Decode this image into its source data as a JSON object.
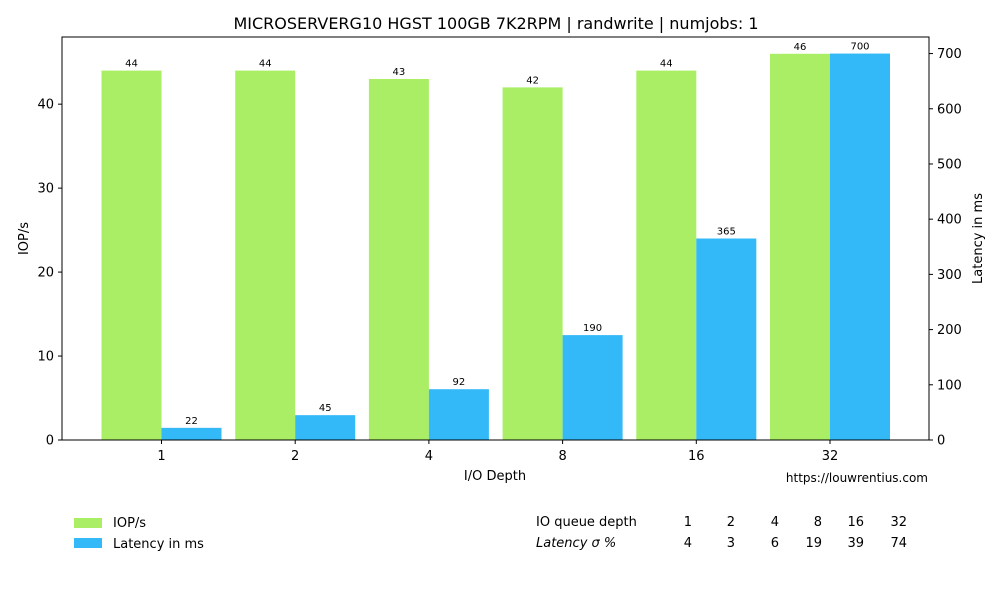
{
  "chart_data": {
    "type": "bar",
    "title": "MICROSERVERG10 HGST 100GB 7K2RPM | randwrite | numjobs: 1",
    "xlabel": "I/O Depth",
    "ylabel": "IOP/s",
    "y2label": "Latency in ms",
    "categories": [
      "1",
      "2",
      "4",
      "8",
      "16",
      "32"
    ],
    "ylim": [
      0,
      48
    ],
    "y2lim": [
      0,
      730
    ],
    "yticks": [
      0,
      10,
      20,
      30,
      40
    ],
    "y2ticks": [
      0,
      100,
      200,
      300,
      400,
      500,
      600,
      700
    ],
    "grid": false,
    "legend_position": "bottom-left",
    "series": [
      {
        "name": "IOP/s",
        "axis": "left",
        "color": "#aaee66",
        "values": [
          44,
          44,
          43,
          42,
          44,
          46
        ]
      },
      {
        "name": "Latency in ms",
        "axis": "right",
        "color": "#33b8f8",
        "values": [
          22,
          45,
          92,
          190,
          365,
          700
        ]
      }
    ],
    "source_note": "https://louwrentius.com"
  },
  "stats_table": {
    "header_label": "IO queue depth",
    "row_label": "Latency σ %",
    "depths": [
      "1",
      "2",
      "4",
      "8",
      "16",
      "32"
    ],
    "latency_sigma": [
      "4",
      "3",
      "6",
      "19",
      "39",
      "74"
    ]
  }
}
